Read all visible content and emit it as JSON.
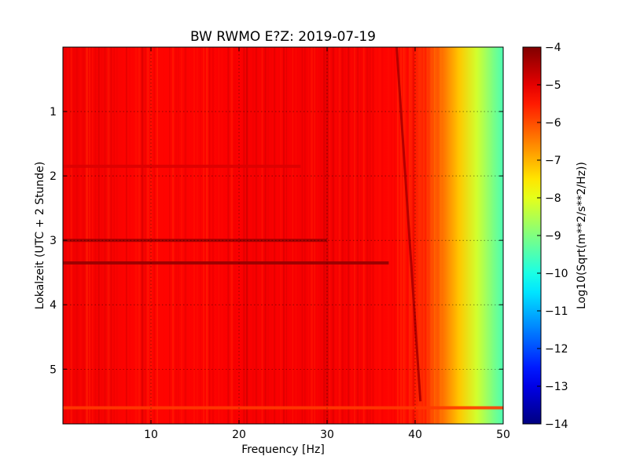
{
  "chart_data": {
    "type": "heatmap",
    "title": "BW RWMO E?Z: 2019-07-19",
    "xlabel": "Frequency [Hz]",
    "ylabel": "Lokalzeit (UTC + 2 Stunde)",
    "xlim": [
      0,
      50
    ],
    "ylim": [
      5.85,
      0
    ],
    "x_ticks": [
      10,
      20,
      30,
      40,
      50
    ],
    "y_ticks": [
      1,
      2,
      3,
      4,
      5
    ],
    "grid": true,
    "colormap": "jet",
    "colorbar": {
      "label": "Log10(Sqrt(m**2/s**2/Hz))",
      "range": [
        -14,
        -4
      ],
      "ticks": [
        -4,
        -5,
        -6,
        -7,
        -8,
        -9,
        -10,
        -11,
        -12,
        -13,
        -14
      ]
    },
    "frequency_profile": [
      {
        "freq": 0,
        "value": -5.1
      },
      {
        "freq": 10,
        "value": -5.3
      },
      {
        "freq": 20,
        "value": -5.2
      },
      {
        "freq": 30,
        "value": -5.15
      },
      {
        "freq": 38,
        "value": -5.3
      },
      {
        "freq": 41,
        "value": -5.7
      },
      {
        "freq": 43,
        "value": -6.3
      },
      {
        "freq": 45,
        "value": -7.2
      },
      {
        "freq": 47,
        "value": -8.2
      },
      {
        "freq": 49,
        "value": -9.1
      },
      {
        "freq": 50,
        "value": -9.5
      }
    ],
    "features": [
      {
        "type": "horizontal-band",
        "time": 3.0,
        "freq_range": [
          0,
          30
        ],
        "value": -4.3
      },
      {
        "type": "horizontal-band",
        "time": 3.35,
        "freq_range": [
          0,
          37
        ],
        "value": -4.2
      },
      {
        "type": "horizontal-band",
        "time": 1.85,
        "freq_range": [
          0,
          27
        ],
        "value": -4.9
      },
      {
        "type": "diagonal-line",
        "start": {
          "freq": 37.9,
          "time": 0
        },
        "end": {
          "freq": 40.6,
          "time": 5.5
        },
        "value": -4.5
      },
      {
        "type": "horizontal-band",
        "time": 5.6,
        "freq_range": [
          0,
          50
        ],
        "value": -5.8
      }
    ]
  }
}
